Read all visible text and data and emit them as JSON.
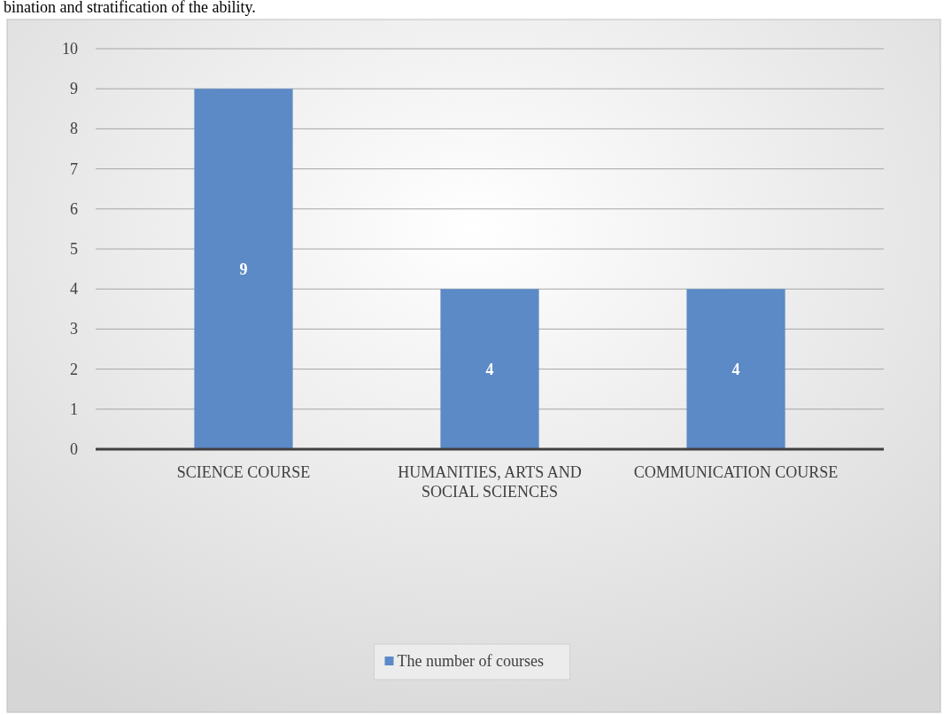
{
  "chart_data": {
    "type": "bar",
    "annotations": [
      "bination and stratification of the ability."
    ],
    "categories": [
      "SCIENCE COURSE",
      "HUMANITIES, ARTS AND SOCIAL SCIENCES",
      "COMMUNICATION COURSE"
    ],
    "series": [
      {
        "name": "The number of courses",
        "color": "#5b8ac6",
        "values": [
          9,
          4,
          4
        ]
      }
    ],
    "ylim": [
      0,
      10
    ],
    "yticks": [
      0,
      1,
      2,
      3,
      4,
      5,
      6,
      7,
      8,
      9,
      10
    ],
    "grid": "y",
    "legend": "bottom",
    "data_labels": true
  }
}
